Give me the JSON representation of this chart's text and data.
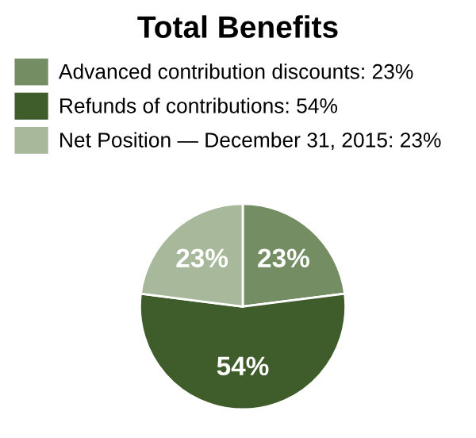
{
  "chart_data": {
    "type": "pie",
    "title": "Total Benefits",
    "categories": [
      "Advanced contribution discounts",
      "Refunds of contributions",
      "Net Position — December 31, 2015"
    ],
    "values": [
      23,
      54,
      23
    ],
    "colors": [
      "#748d63",
      "#3f5c2b",
      "#a7b99a"
    ],
    "value_labels": [
      "23%",
      "54%",
      "23%"
    ],
    "legend": "top"
  }
}
